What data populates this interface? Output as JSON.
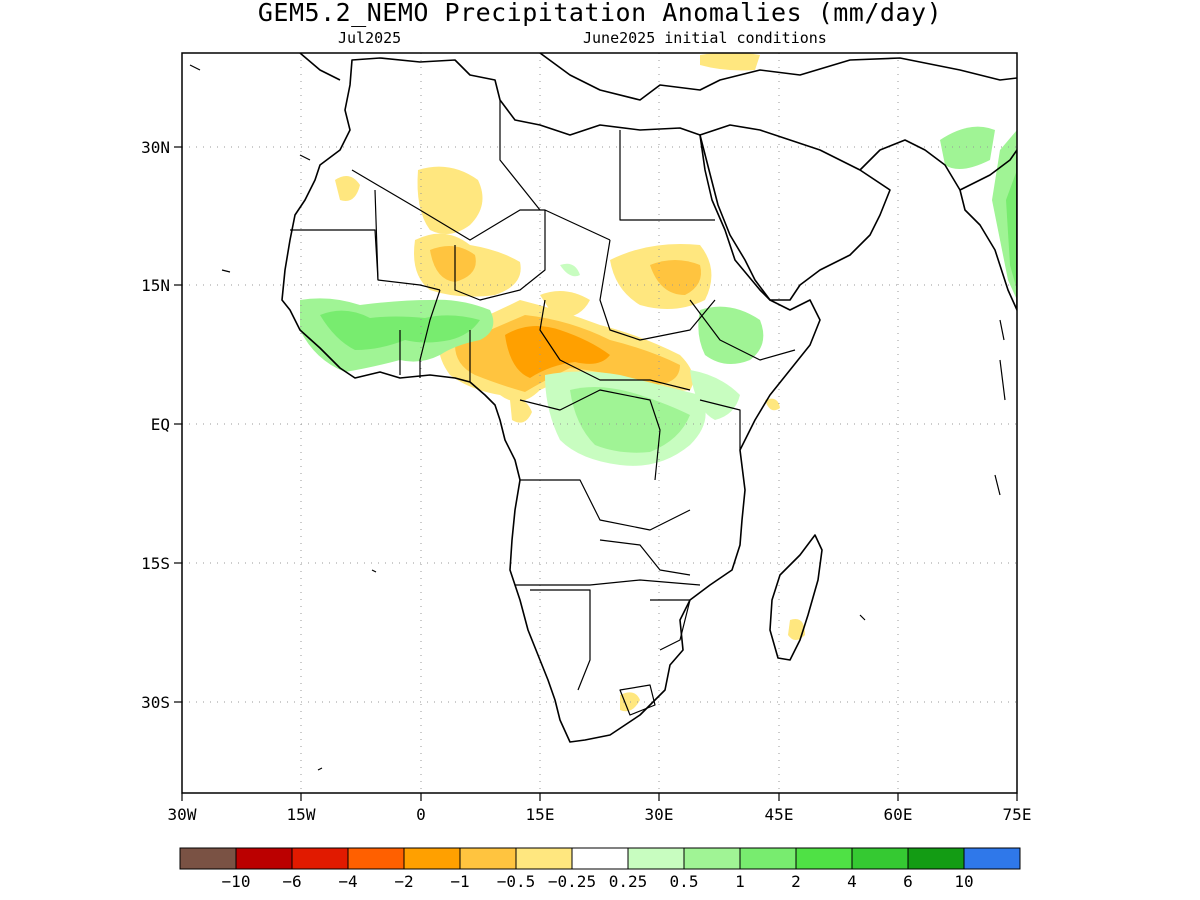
{
  "title": "GEM5.2_NEMO Precipitation Anomalies (mm/day)",
  "subtitle_left": "Jul2025",
  "subtitle_right": "June2025 initial conditions",
  "axes": {
    "lon_ticks": [
      {
        "value": -30,
        "label": "30W"
      },
      {
        "value": -15,
        "label": "15W"
      },
      {
        "value": 0,
        "label": "0"
      },
      {
        "value": 15,
        "label": "15E"
      },
      {
        "value": 30,
        "label": "30E"
      },
      {
        "value": 45,
        "label": "45E"
      },
      {
        "value": 60,
        "label": "60E"
      },
      {
        "value": 75,
        "label": "75E"
      }
    ],
    "lat_ticks": [
      {
        "value": 30,
        "label": "30N"
      },
      {
        "value": 15,
        "label": "15N"
      },
      {
        "value": 0,
        "label": "EQ"
      },
      {
        "value": -15,
        "label": "15S"
      },
      {
        "value": -30,
        "label": "30S"
      }
    ],
    "lon_range": [
      -30,
      75
    ],
    "lat_range": [
      -40,
      40
    ],
    "grid": "dotted"
  },
  "colorbar": {
    "colors": [
      "#7a5244",
      "#bb0000",
      "#e11a00",
      "#ff6000",
      "#ffa000",
      "#ffc43f",
      "#ffe77f",
      "#ffffff",
      "#c8fdc0",
      "#a0f495",
      "#78ec6f",
      "#4fe145",
      "#35c932",
      "#139c14",
      "#2f78ea"
    ],
    "labels": [
      "−10",
      "−6",
      "−4",
      "−2",
      "−1",
      "−0.5",
      "−0.25",
      "0.25",
      "0.5",
      "1",
      "2",
      "4",
      "6",
      "10"
    ]
  },
  "anomaly_regions": [
    {
      "name": "sahara-dry-west",
      "level": "-0.5"
    },
    {
      "name": "sahel-dry-center",
      "level": "-0.5"
    },
    {
      "name": "sahel-dry-core",
      "level": "-1"
    },
    {
      "name": "sudan-dry",
      "level": "-0.5"
    },
    {
      "name": "west-africa-wet",
      "level": "0.5"
    },
    {
      "name": "west-africa-wet-core",
      "level": "1"
    },
    {
      "name": "congo-wet",
      "level": "0.5"
    },
    {
      "name": "ethiopia-mixed",
      "level": "0.5"
    },
    {
      "name": "india-wet",
      "level": "0.5"
    },
    {
      "name": "madagascar-dry",
      "level": "-0.5"
    },
    {
      "name": "south-africa-dry",
      "level": "-0.5"
    }
  ]
}
